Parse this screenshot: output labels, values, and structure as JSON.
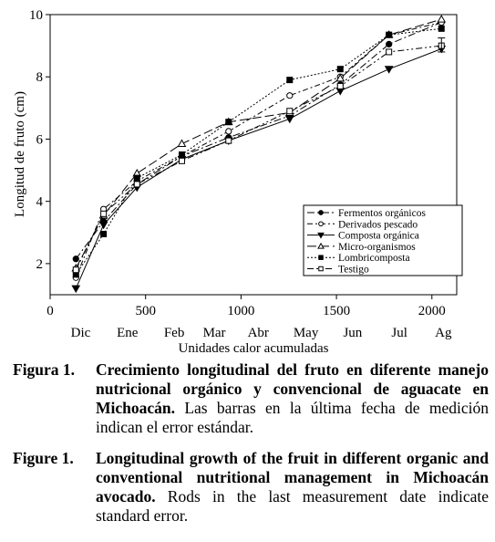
{
  "chart_data": {
    "type": "line",
    "xlabel": "Unidades calor acumuladas",
    "ylabel": "Longitud de fruto (cm)",
    "xlim": [
      0,
      2130
    ],
    "ylim": [
      1,
      10
    ],
    "x_ticks": [
      0,
      500,
      1000,
      1500,
      2000
    ],
    "y_ticks": [
      2,
      4,
      6,
      8,
      10
    ],
    "month_labels": [
      {
        "label": "Dic",
        "x": 160
      },
      {
        "label": "Ene",
        "x": 405
      },
      {
        "label": "Feb",
        "x": 650
      },
      {
        "label": "Mar",
        "x": 860
      },
      {
        "label": "Abr",
        "x": 1090
      },
      {
        "label": "May",
        "x": 1340
      },
      {
        "label": "Jun",
        "x": 1585
      },
      {
        "label": "Jul",
        "x": 1830
      },
      {
        "label": "Ag",
        "x": 2060
      }
    ],
    "legend_position": "inside-bottom-right",
    "series": [
      {
        "name": "Fermentos orgánicos",
        "marker": "filled-circle",
        "dash": "8,3,2,3",
        "x": [
          135,
          280,
          455,
          690,
          935,
          1255,
          1520,
          1775,
          2050
        ],
        "y": [
          2.15,
          3.35,
          4.55,
          5.45,
          6.05,
          6.75,
          7.75,
          9.05,
          9.75
        ]
      },
      {
        "name": "Derivados pescado",
        "marker": "open-circle",
        "dash": "6,3,2,3",
        "x": [
          135,
          280,
          455,
          690,
          935,
          1255,
          1520,
          1775,
          2050
        ],
        "y": [
          1.55,
          3.75,
          4.65,
          5.45,
          6.25,
          7.4,
          8.0,
          9.35,
          9.75
        ]
      },
      {
        "name": "Composta orgánica",
        "marker": "filled-triangle-down",
        "dash": "",
        "x": [
          135,
          280,
          455,
          690,
          935,
          1255,
          1520,
          1775,
          2050
        ],
        "y": [
          1.2,
          3.25,
          4.45,
          5.35,
          5.95,
          6.65,
          7.55,
          8.25,
          8.9
        ]
      },
      {
        "name": "Micro-organismos",
        "marker": "open-triangle-up",
        "dash": "10,4",
        "x": [
          135,
          280,
          455,
          690,
          935,
          1255,
          1520,
          1775,
          2050
        ],
        "y": [
          1.85,
          3.55,
          4.9,
          5.85,
          6.55,
          6.85,
          7.95,
          9.35,
          9.85
        ]
      },
      {
        "name": "Lombricomposta",
        "marker": "filled-square",
        "dash": "2,2",
        "x": [
          135,
          280,
          455,
          690,
          935,
          1255,
          1520,
          1775,
          2050
        ],
        "y": [
          1.65,
          2.95,
          4.75,
          5.5,
          6.55,
          7.9,
          8.25,
          9.35,
          9.55
        ]
      },
      {
        "name": "Testigo",
        "marker": "open-square",
        "dash": "7,3,2,3,2,3",
        "x": [
          135,
          280,
          455,
          690,
          935,
          1255,
          1520,
          1775,
          2050
        ],
        "y": [
          1.8,
          3.6,
          4.55,
          5.3,
          5.95,
          6.9,
          7.7,
          8.8,
          9.0
        ]
      }
    ],
    "error_bars": {
      "x": 2050,
      "low": 8.8,
      "high": 9.25
    }
  },
  "caption_es": {
    "label": "Figura 1.",
    "bold": "Crecimiento longitudinal del fruto en diferente manejo nutricional orgánico y convencional de aguacate en Michoacán.",
    "rest": " Las barras en la última fecha de medición indican el error estándar."
  },
  "caption_en": {
    "label": "Figure 1.",
    "bold": "Longitudinal growth of the fruit in different organic and conventional nutritional management in Michoacán avocado.",
    "rest": " Rods in the last measurement date indicate standard error."
  }
}
